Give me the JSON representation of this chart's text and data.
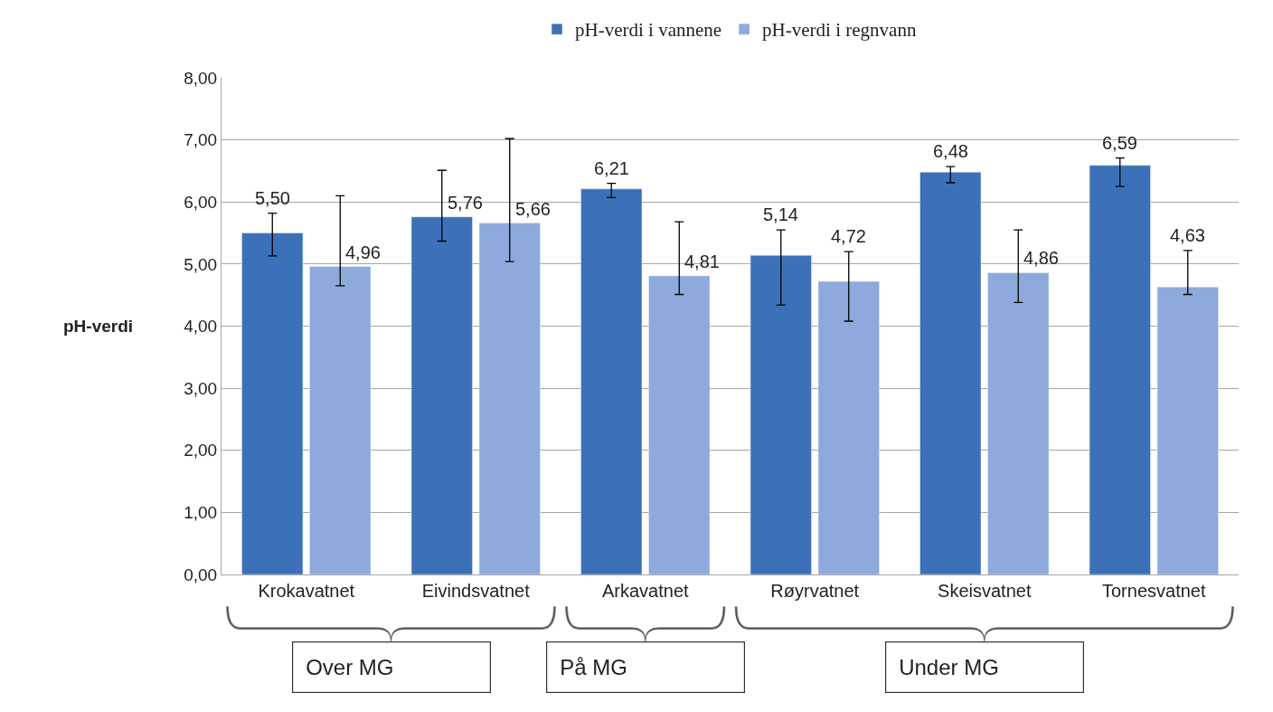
{
  "chart_data": {
    "type": "bar",
    "categories": [
      "Krokavatnet",
      "Eivindsvatnet",
      "Arkavatnet",
      "Røyrvatnet",
      "Skeisvatnet",
      "Tornesvatnet"
    ],
    "series": [
      {
        "name": "pH-verdi i vannene",
        "color": "#3c71b9",
        "values": [
          5.5,
          5.76,
          6.21,
          5.14,
          6.48,
          6.59
        ],
        "value_labels": [
          "5,50",
          "5,76",
          "6,21",
          "5,14",
          "6,48",
          "6,59"
        ],
        "errors": [
          [
            5.13,
            5.82
          ],
          [
            5.37,
            6.51
          ],
          [
            6.07,
            6.3
          ],
          [
            4.34,
            5.55
          ],
          [
            6.31,
            6.57
          ],
          [
            6.25,
            6.71
          ]
        ]
      },
      {
        "name": "pH-verdi i regnvann",
        "color": "#8eaadc",
        "values": [
          4.96,
          5.66,
          4.81,
          4.72,
          4.86,
          4.63
        ],
        "value_labels": [
          "4,96",
          "5,66",
          "4,81",
          "4,72",
          "4,86",
          "4,63"
        ],
        "errors": [
          [
            4.65,
            6.1
          ],
          [
            5.04,
            7.02
          ],
          [
            4.51,
            5.68
          ],
          [
            4.08,
            5.2
          ],
          [
            4.38,
            5.55
          ],
          [
            4.51,
            5.22
          ]
        ]
      }
    ],
    "ylabel": "pH-verdi",
    "ylim": [
      0,
      8
    ],
    "yticks": [
      {
        "value": 0,
        "label": "0,00"
      },
      {
        "value": 1,
        "label": "1,00"
      },
      {
        "value": 2,
        "label": "2,00"
      },
      {
        "value": 3,
        "label": "3,00"
      },
      {
        "value": 4,
        "label": "4,00"
      },
      {
        "value": 5,
        "label": "5,00"
      },
      {
        "value": 6,
        "label": "6,00"
      },
      {
        "value": 7,
        "label": "7,00"
      },
      {
        "value": 8,
        "label": "8,00"
      }
    ],
    "grid": "y",
    "legend": "top",
    "annotations": [
      "Over MG",
      "På MG",
      "Under MG"
    ]
  }
}
